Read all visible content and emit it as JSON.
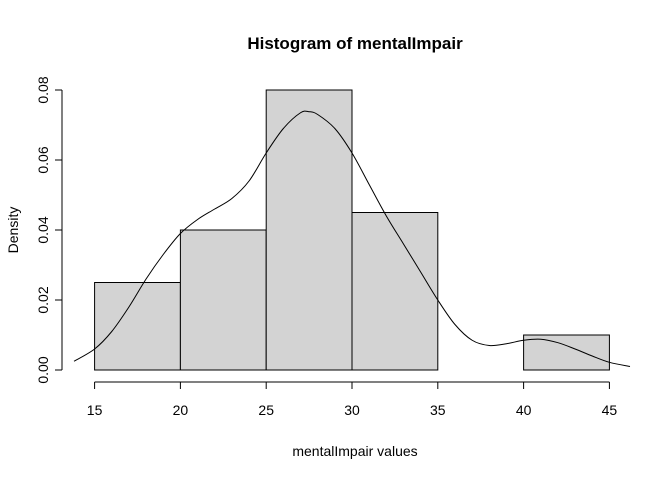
{
  "chart_data": {
    "type": "bar",
    "subtype": "histogram",
    "title": "Histogram of mentalImpair",
    "xlabel": "mentalImpair values",
    "ylabel": "Density",
    "bins": [
      {
        "start": 15,
        "end": 20,
        "density": 0.025
      },
      {
        "start": 20,
        "end": 25,
        "density": 0.04
      },
      {
        "start": 25,
        "end": 30,
        "density": 0.08
      },
      {
        "start": 30,
        "end": 35,
        "density": 0.045
      },
      {
        "start": 35,
        "end": 40,
        "density": 0.0
      },
      {
        "start": 40,
        "end": 45,
        "density": 0.01
      }
    ],
    "density_curve": {
      "x": [
        13.8,
        15,
        16,
        17,
        18,
        19,
        20,
        21,
        22,
        23,
        24,
        25,
        26,
        27,
        27.5,
        28,
        29,
        30,
        31,
        32,
        33,
        34,
        35,
        36,
        37,
        38,
        39,
        40,
        41,
        42,
        43,
        44,
        45,
        46.2
      ],
      "y": [
        0.0025,
        0.006,
        0.011,
        0.018,
        0.026,
        0.033,
        0.039,
        0.043,
        0.046,
        0.049,
        0.054,
        0.062,
        0.069,
        0.0735,
        0.0738,
        0.073,
        0.069,
        0.062,
        0.053,
        0.044,
        0.036,
        0.028,
        0.02,
        0.013,
        0.0085,
        0.007,
        0.0075,
        0.0085,
        0.0088,
        0.0078,
        0.006,
        0.004,
        0.0022,
        0.001
      ]
    },
    "xlim": [
      13.8,
      46.2
    ],
    "ylim": [
      0,
      0.08
    ],
    "x_ticks": [
      "15",
      "20",
      "25",
      "30",
      "35",
      "40",
      "45"
    ],
    "y_ticks": [
      "0.00",
      "0.02",
      "0.04",
      "0.06",
      "0.08"
    ],
    "colors": {
      "bar_fill": "#d3d3d3",
      "bar_stroke": "#000000",
      "curve": "#000000"
    },
    "grid": false
  }
}
